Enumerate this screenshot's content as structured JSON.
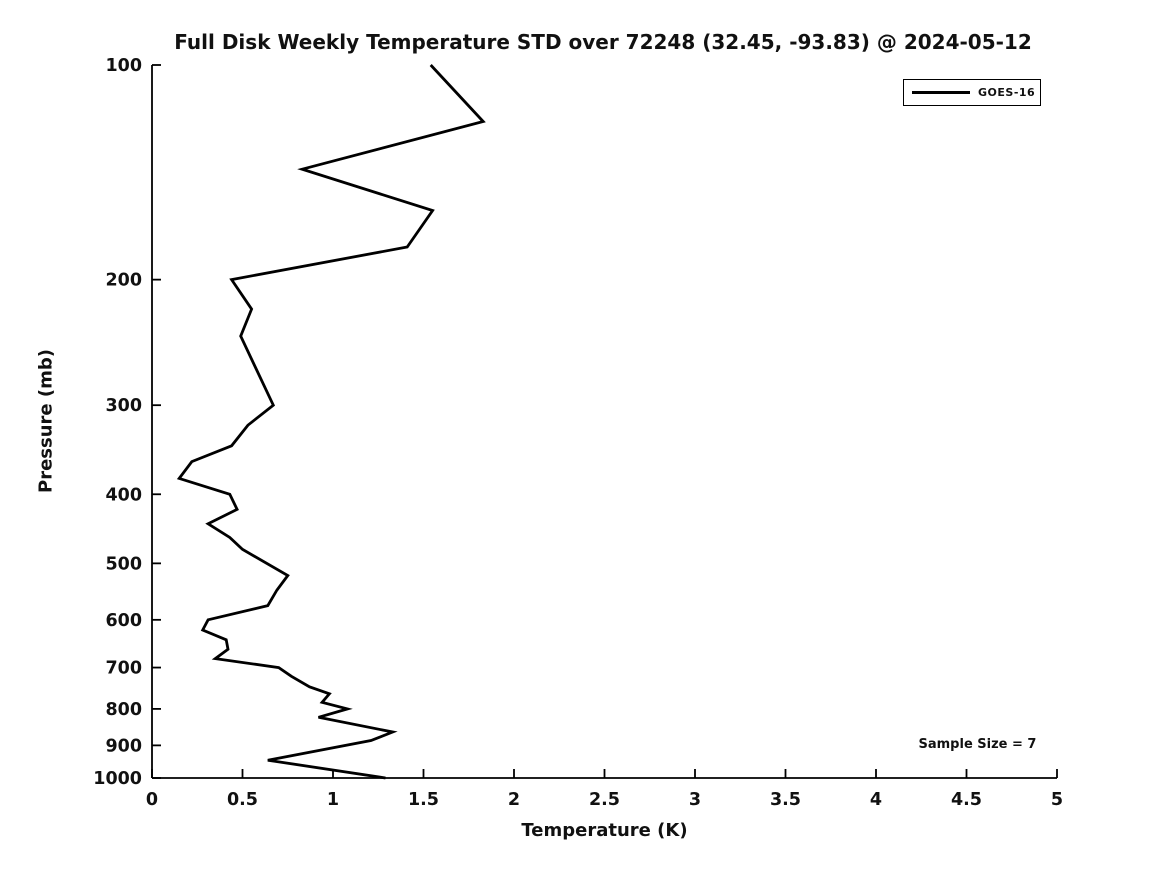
{
  "chart_data": {
    "type": "line",
    "title": "Full Disk Weekly Temperature STD over 72248 (32.45, -93.83) @ 2024-05-12",
    "xlabel": "Temperature (K)",
    "ylabel": "Pressure (mb)",
    "xlim": [
      0,
      5
    ],
    "ylim": [
      100,
      1000
    ],
    "y_scale": "log",
    "y_inverted": true,
    "grid": false,
    "x_ticks": [
      0,
      0.5,
      1,
      1.5,
      2,
      2.5,
      3,
      3.5,
      4,
      4.5,
      5
    ],
    "x_tick_labels": [
      "0",
      "0.5",
      "1",
      "1.5",
      "2",
      "2.5",
      "3",
      "3.5",
      "4",
      "4.5",
      "5"
    ],
    "y_ticks": [
      100,
      200,
      300,
      400,
      500,
      600,
      700,
      800,
      900,
      1000
    ],
    "y_tick_labels": [
      "100",
      "200",
      "300",
      "400",
      "500",
      "600",
      "700",
      "800",
      "900",
      "1000"
    ],
    "legend": {
      "position": "top-right",
      "entries": [
        {
          "label": "GOES-16",
          "color": "#000000"
        }
      ]
    },
    "annotations": [
      {
        "text": "Sample Size = 7",
        "position": "bottom-right"
      }
    ],
    "series": [
      {
        "name": "GOES-16",
        "color": "#000000",
        "points_format": "[temperature_std_K, pressure_mb]",
        "points": [
          [
            1.54,
            100
          ],
          [
            1.83,
            120
          ],
          [
            0.83,
            140
          ],
          [
            1.55,
            160
          ],
          [
            1.41,
            180
          ],
          [
            0.44,
            200
          ],
          [
            0.55,
            220
          ],
          [
            0.49,
            240
          ],
          [
            0.67,
            300
          ],
          [
            0.53,
            320
          ],
          [
            0.44,
            342
          ],
          [
            0.22,
            360
          ],
          [
            0.15,
            380
          ],
          [
            0.43,
            400
          ],
          [
            0.47,
            420
          ],
          [
            0.31,
            440
          ],
          [
            0.43,
            460
          ],
          [
            0.5,
            478
          ],
          [
            0.75,
            520
          ],
          [
            0.69,
            545
          ],
          [
            0.64,
            573
          ],
          [
            0.31,
            600
          ],
          [
            0.28,
            620
          ],
          [
            0.41,
            640
          ],
          [
            0.42,
            660
          ],
          [
            0.35,
            680
          ],
          [
            0.7,
            700
          ],
          [
            0.77,
            720
          ],
          [
            0.87,
            745
          ],
          [
            0.98,
            762
          ],
          [
            0.94,
            783
          ],
          [
            1.08,
            800
          ],
          [
            0.92,
            822
          ],
          [
            1.33,
            862
          ],
          [
            1.21,
            886
          ],
          [
            0.64,
            944
          ],
          [
            1.29,
            1000
          ]
        ]
      }
    ]
  },
  "style": {
    "axis_color": "#000000",
    "text_color": "#111111",
    "line_color": "#000000",
    "background": "#ffffff"
  }
}
